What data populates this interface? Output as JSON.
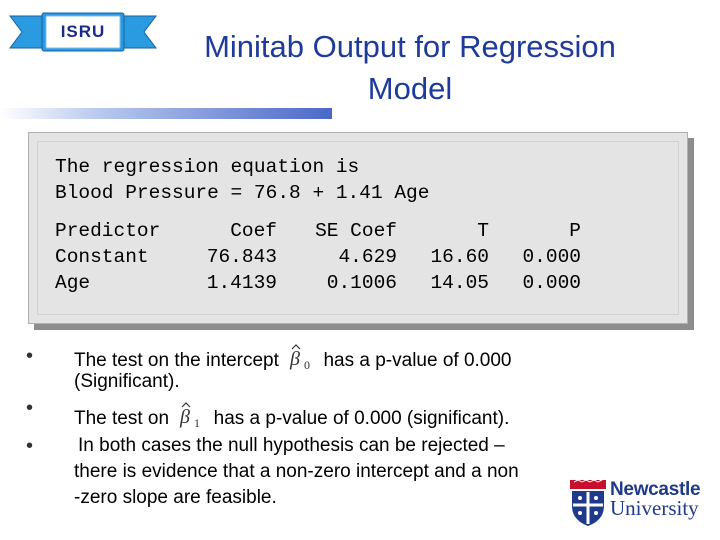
{
  "header": {
    "logo_text": "ISRU",
    "title_line1": "Minitab Output for Regression",
    "title_line2": "Model"
  },
  "output": {
    "equation_line1": "The regression equation is",
    "equation_line2": "Blood Pressure = 76.8 + 1.41 Age",
    "table": {
      "headers": [
        "Predictor",
        "Coef",
        "SE Coef",
        "T",
        "P"
      ],
      "rows": [
        [
          "Constant",
          "76.843",
          "4.629",
          "16.60",
          "0.000"
        ],
        [
          "Age",
          "1.4139",
          "0.1006",
          "14.05",
          "0.000"
        ]
      ]
    }
  },
  "bullets": {
    "b1_before": "The test on the intercept",
    "b1_after": "has a p-value of 0.000",
    "b1_line2": "(Significant).",
    "b2_before": "The test on",
    "b2_after": "has a p-value of 0.000 (significant).",
    "b3_line1": "In both cases the null hypothesis can be rejected –",
    "b3_line2": "there is evidence that a non-zero intercept and a non",
    "b3_line3": "-zero slope are feasible.",
    "beta0_sub": "0",
    "beta1_sub": "1"
  },
  "footer": {
    "logo_name": "Newcastle",
    "logo_sub": "University"
  },
  "colors": {
    "title": "#1e3a9a",
    "box_bg": "#e4e4e4",
    "logo_blue": "#1f3a8a",
    "logo_red": "#c8102e"
  }
}
